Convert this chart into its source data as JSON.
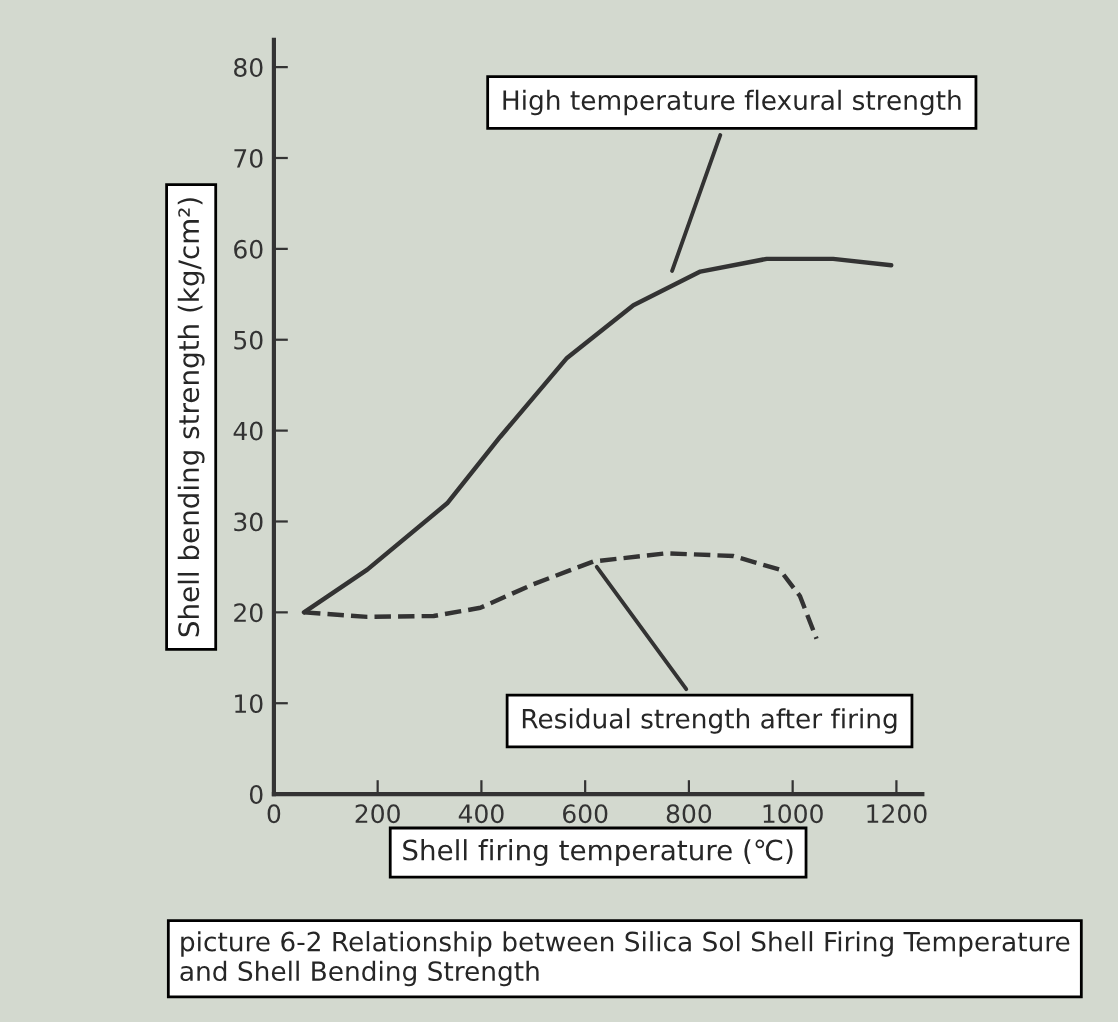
{
  "chart_data": {
    "type": "line",
    "title": "picture 6-2 Relationship between Silica Sol Shell Firing Temperature and Shell Bending Strength",
    "xlabel": "Shell firing temperature (℃)",
    "ylabel": "Shell bending strength (kg/cm²)",
    "xlim": [
      0,
      1250
    ],
    "xticks": [
      0,
      200,
      400,
      600,
      800,
      1000,
      1200
    ],
    "ylim": [
      0,
      83
    ],
    "yticks": [
      0,
      10,
      20,
      30,
      40,
      50,
      60,
      70,
      80
    ],
    "grid": false,
    "legend": false,
    "series": [
      {
        "color": "#333333",
        "line_style": "solid",
        "x": [
          58,
          180,
          334,
          436,
          565,
          693,
          822,
          950,
          1078,
          1190
        ],
        "values": [
          20,
          24.7,
          32,
          39.3,
          48,
          53.8,
          57.5,
          58.9,
          58.9,
          58.2
        ]
      },
      {
        "color": "#333333",
        "line_style": "dashed",
        "x": [
          58,
          180,
          308,
          398,
          500,
          616,
          757,
          886,
          975,
          1014,
          1046
        ],
        "values": [
          20,
          19.5,
          19.6,
          20.5,
          23.1,
          25.6,
          26.5,
          26.2,
          24.7,
          21.8,
          17.1
        ]
      }
    ],
    "annotations": [
      {
        "text": "High temperature flexural strength",
        "x": 764,
        "y": 57
      },
      {
        "text": "Residual strength after firing",
        "x": 616,
        "y": 25.5
      }
    ]
  }
}
